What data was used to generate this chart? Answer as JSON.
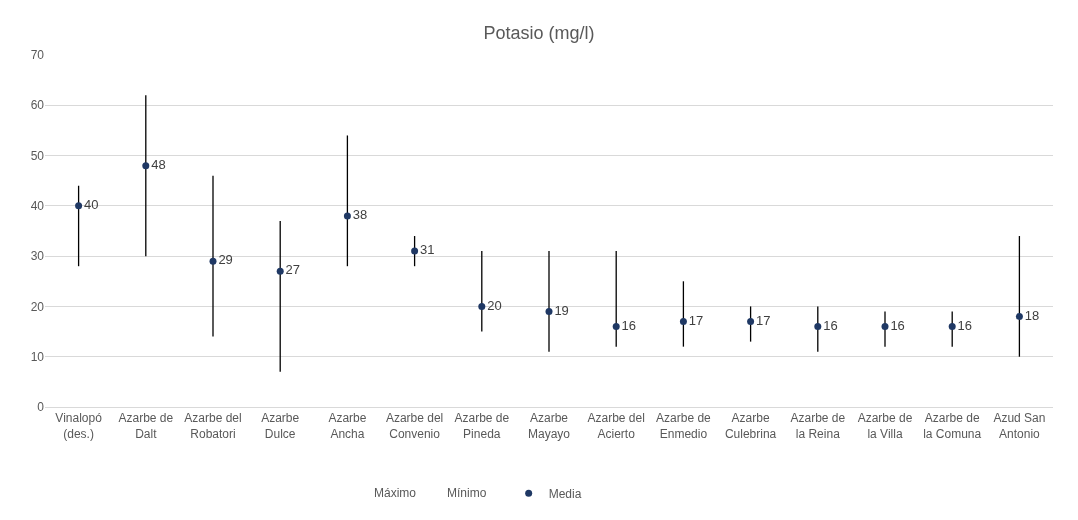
{
  "chart_data": {
    "type": "scatter",
    "title": "Potasio (mg/l)",
    "categories": [
      "Vinalopó (des.)",
      "Azarbe de Dalt",
      "Azarbe del Robatori",
      "Azarbe Dulce",
      "Azarbe Ancha",
      "Azarbe del Convenio",
      "Azarbe de Pineda",
      "Azarbe Mayayo",
      "Azarbe del Acierto",
      "Azarbe de Enmedio",
      "Azarbe Culebrina",
      "Azarbe de la Reina",
      "Azarbe de la Villa",
      "Azarbe de la Comuna",
      "Azud San Antonio"
    ],
    "series": [
      {
        "name": "Media",
        "color": "#1f3864",
        "values": [
          40,
          48,
          29,
          27,
          38,
          31,
          20,
          19,
          16,
          17,
          17,
          16,
          16,
          16,
          18
        ],
        "errors": [
          [
            28,
            44
          ],
          [
            30,
            62
          ],
          [
            14,
            46
          ],
          [
            7,
            37
          ],
          [
            28,
            54
          ],
          [
            28,
            34
          ],
          [
            15,
            31
          ],
          [
            11,
            31
          ],
          [
            12,
            31
          ],
          [
            12,
            25
          ],
          [
            13,
            20
          ],
          [
            11,
            20
          ],
          [
            12,
            19
          ],
          [
            12,
            19
          ],
          [
            10,
            34
          ]
        ]
      }
    ],
    "annotations": [
      "Máximo",
      "Mínimo"
    ],
    "data_labels": true,
    "marker": "circle",
    "ylim": [
      0,
      70
    ],
    "yticks": [
      0,
      10,
      20,
      30,
      40,
      50,
      60,
      70
    ],
    "grid": "y",
    "legend": "bottom"
  }
}
